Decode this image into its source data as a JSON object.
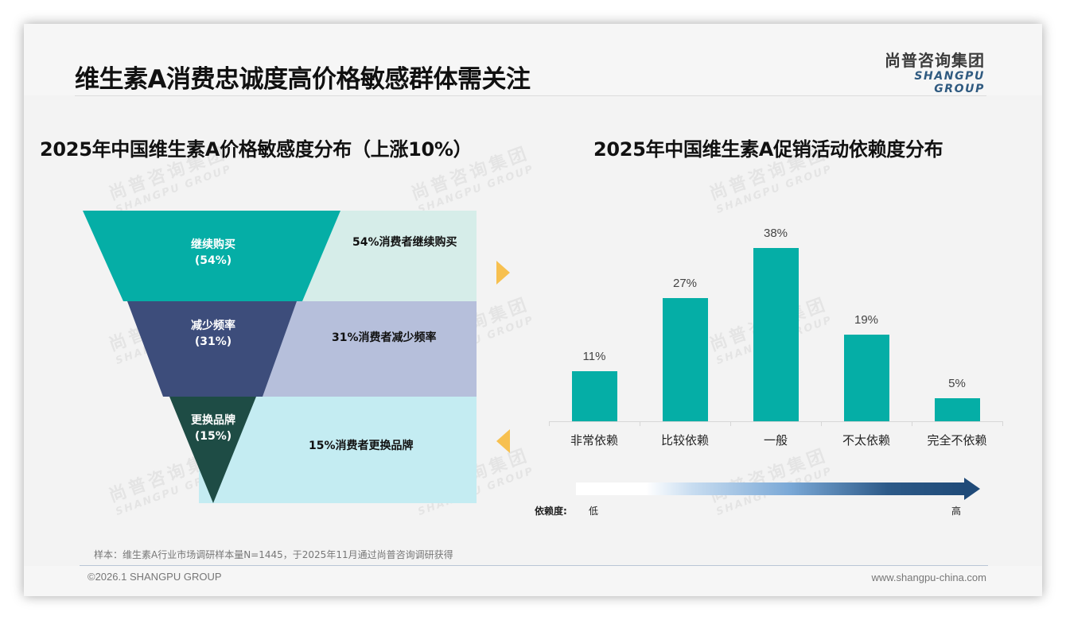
{
  "header": {
    "title": "维生素A消费忠诚度高价格敏感群体需关注",
    "logo_cn": "尚普咨询集团",
    "logo_en": "SHANGPU GROUP"
  },
  "watermark": {
    "cn": "尚普咨询集团",
    "en": "SHANGPU GROUP"
  },
  "left_panel": {
    "title": "2025年中国维生素A价格敏感度分布（上涨10%）",
    "funnel": [
      {
        "label": "继续购买",
        "pct": "(54%)",
        "band_text": "54%消费者继续购买",
        "color": "#05aea6",
        "band_color": "#d6ede9"
      },
      {
        "label": "减少频率",
        "pct": "(31%)",
        "band_text": "31%消费者减少频率",
        "color": "#3d4d7b",
        "band_color": "#b6bfdb"
      },
      {
        "label": "更换品牌",
        "pct": "(15%)",
        "band_text": "15%消费者更换品牌",
        "color": "#1e4c45",
        "band_color": "#c4ecf2"
      }
    ],
    "arrow_color": "#f7c04f"
  },
  "right_panel": {
    "title": "2025年中国维生素A促销活动依赖度分布",
    "scale": {
      "label": "依赖度:",
      "low": "低",
      "high": "高",
      "gradient_start": "#ffffff",
      "gradient_end": "#1f4a78"
    }
  },
  "chart_data": [
    {
      "type": "funnel",
      "title": "2025年中国维生素A价格敏感度分布（上涨10%）",
      "categories": [
        "继续购买",
        "减少频率",
        "更换品牌"
      ],
      "values": [
        54,
        31,
        15
      ],
      "unit": "%"
    },
    {
      "type": "bar",
      "title": "2025年中国维生素A促销活动依赖度分布",
      "categories": [
        "非常依赖",
        "比较依赖",
        "一般",
        "不太依赖",
        "完全不依赖"
      ],
      "values": [
        11,
        27,
        38,
        19,
        5
      ],
      "value_labels": [
        "11%",
        "27%",
        "38%",
        "19%",
        "5%"
      ],
      "xlabel": "",
      "ylabel": "",
      "grid": false,
      "bar_color": "#05aea6",
      "annotation": "依赖度: 低 → 高"
    }
  ],
  "footer": {
    "source": "样本：维生素A行业市场调研样本量N=1445，于2025年11月通过尚普咨询调研获得",
    "copyright": "©2026.1 SHANGPU GROUP",
    "website": "www.shangpu-china.com"
  }
}
